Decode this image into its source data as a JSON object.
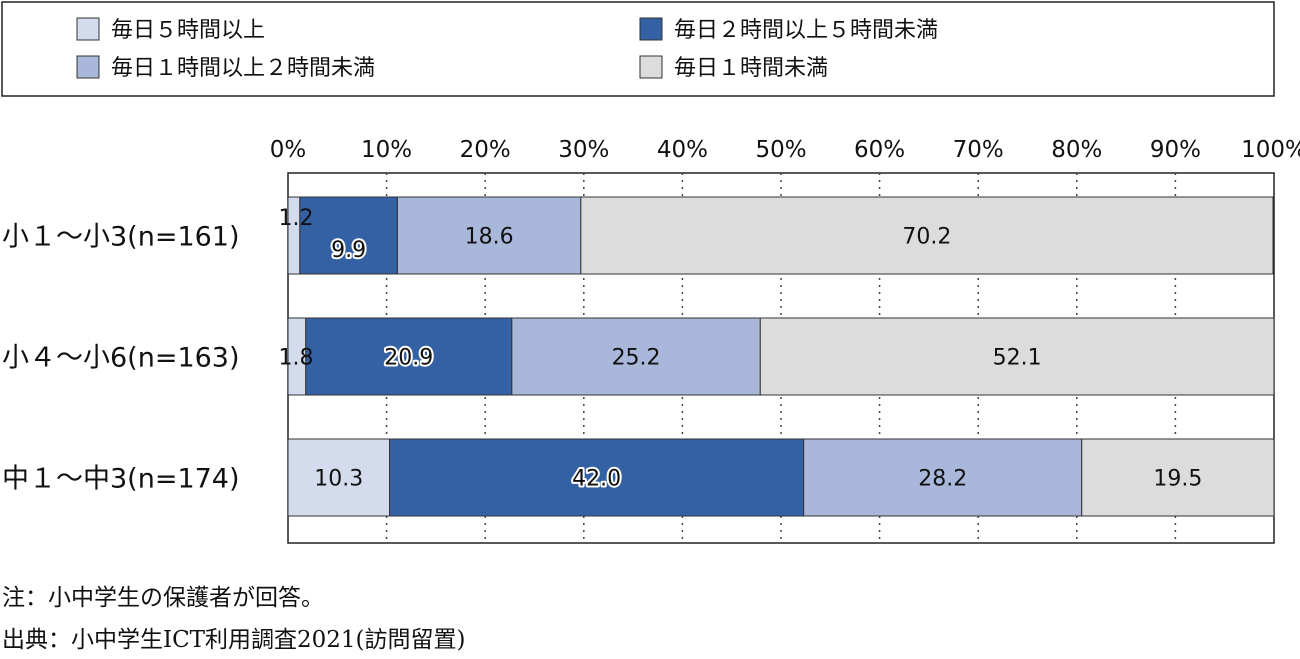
{
  "chart_data": {
    "type": "bar",
    "orientation": "horizontal",
    "stacked": true,
    "categories": [
      "小１～小3(n=161)",
      "小４～小6(n=163)",
      "中１～中3(n=174)"
    ],
    "series": [
      {
        "name": "毎日５時間以上",
        "color": "#d3dbec",
        "values": [
          1.2,
          1.8,
          10.3
        ]
      },
      {
        "name": "毎日２時間以上５時間未満",
        "color": "#3460a4",
        "values": [
          9.9,
          20.9,
          42.0
        ]
      },
      {
        "name": "毎日１時間以上２時間未満",
        "color": "#a9b8da",
        "values": [
          18.6,
          25.2,
          28.2
        ]
      },
      {
        "name": "毎日１時間未満",
        "color": "#dcdcdc",
        "values": [
          70.2,
          52.1,
          19.5
        ]
      }
    ],
    "legend_order": [
      0,
      1,
      2,
      3
    ],
    "xlim": [
      0,
      100
    ],
    "x_ticks": [
      "0%",
      "10%",
      "20%",
      "30%",
      "40%",
      "50%",
      "60%",
      "70%",
      "80%",
      "90%",
      "100%"
    ],
    "grid": "vertical-dotted",
    "legend_position": "top"
  },
  "notes": {
    "note": "注：小中学生の保護者が回答。",
    "source": "出典：小中学生ICT利用調査2021(訪問留置)"
  }
}
